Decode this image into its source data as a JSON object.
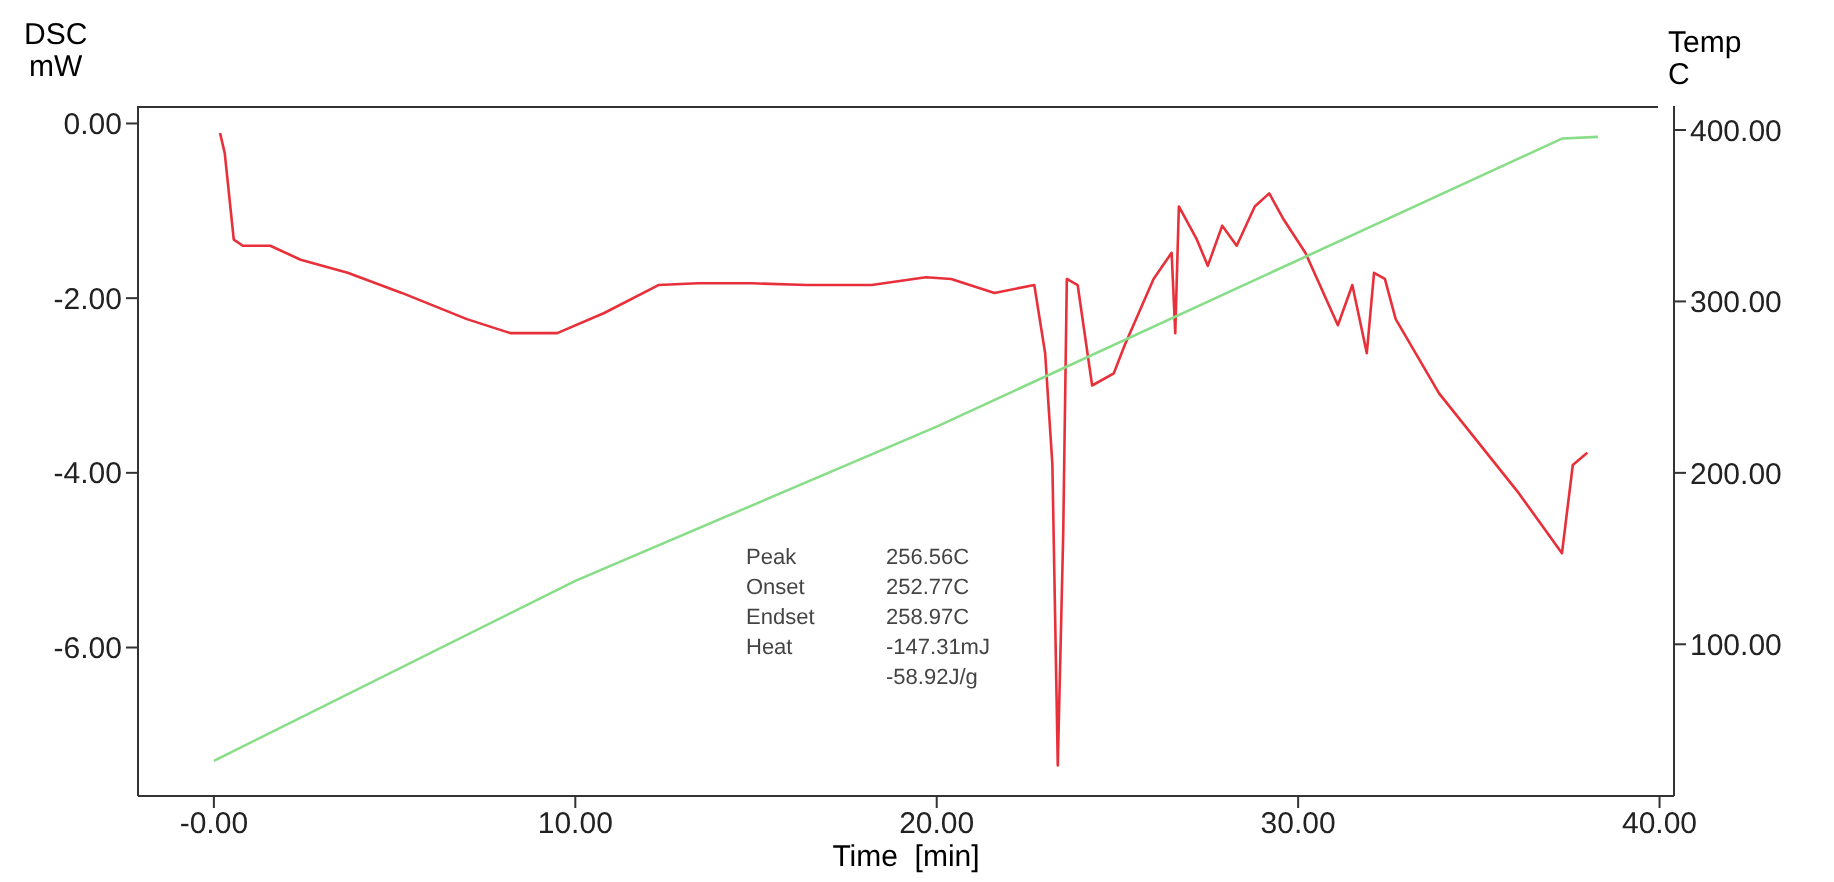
{
  "chart_data": {
    "type": "line",
    "xlabel": "Time  [min]",
    "ylabel": "DSC\nmW",
    "y2label": "Temp\nC",
    "xlim": [
      -2.1,
      40.4
    ],
    "xticks": [
      {
        "value": 0,
        "label": "-0.00"
      },
      {
        "value": 10,
        "label": "10.00"
      },
      {
        "value": 20,
        "label": "20.00"
      },
      {
        "value": 30,
        "label": "30.00"
      },
      {
        "value": 40,
        "label": "40.00"
      }
    ],
    "ylim": [
      -7.7,
      0.2
    ],
    "yticks": [
      {
        "value": 0,
        "label": "0.00"
      },
      {
        "value": -2,
        "label": "-2.00"
      },
      {
        "value": -4,
        "label": "-4.00"
      },
      {
        "value": -6,
        "label": "-6.00"
      }
    ],
    "y2lim": [
      11.5,
      414
    ],
    "y2ticks": [
      {
        "value": 100,
        "label": "100.00"
      },
      {
        "value": 200,
        "label": "200.00"
      },
      {
        "value": 300,
        "label": "300.00"
      },
      {
        "value": 400,
        "label": "400.00"
      }
    ],
    "marker": "none",
    "line_style": "solid",
    "annotations": [
      "Peak",
      "256.56C",
      "Onset",
      "252.77C",
      "Endset",
      "258.97C",
      "Heat",
      "-147.31mJ",
      "-58.92J/g"
    ],
    "series": [
      {
        "color": "#e8303a",
        "x": [
          0.17,
          0.3,
          0.55,
          0.8,
          1.56,
          2.4,
          3.7,
          5.2,
          7.0,
          8.2,
          9.5,
          10.8,
          12.3,
          13.4,
          14.9,
          16.4,
          18.2,
          19.7,
          20.4,
          21.6,
          22.7,
          23.0,
          23.2,
          23.35,
          23.5,
          23.6,
          23.9,
          24.3,
          24.9,
          25.2,
          26.0,
          26.5,
          26.6,
          26.7,
          27.2,
          27.5,
          27.9,
          28.3,
          28.8,
          29.2,
          29.6,
          30.2,
          31.1,
          31.5,
          31.9,
          32.1,
          32.4,
          32.7,
          33.9,
          36.1,
          37.3,
          37.6,
          38.0
        ],
        "values": [
          -0.11,
          -0.34,
          -1.33,
          -1.4,
          -1.4,
          -1.56,
          -1.71,
          -1.94,
          -2.24,
          -2.4,
          -2.4,
          -2.17,
          -1.85,
          -1.83,
          -1.83,
          -1.85,
          -1.85,
          -1.76,
          -1.78,
          -1.94,
          -1.85,
          -2.63,
          -3.9,
          -7.35,
          -4.7,
          -1.78,
          -1.85,
          -3.0,
          -2.86,
          -2.54,
          -1.78,
          -1.48,
          -2.4,
          -0.95,
          -1.33,
          -1.63,
          -1.17,
          -1.4,
          -0.95,
          -0.8,
          -1.1,
          -1.48,
          -2.31,
          -1.85,
          -2.63,
          -1.71,
          -1.78,
          -2.24,
          -3.09,
          -4.23,
          -4.92,
          -3.91,
          -3.77
        ]
      },
      {
        "color": "#88dd88",
        "axis": "y2",
        "x": [
          0,
          10,
          20,
          37.3,
          38.3
        ],
        "values": [
          32,
          137,
          227,
          395,
          396
        ]
      }
    ]
  }
}
